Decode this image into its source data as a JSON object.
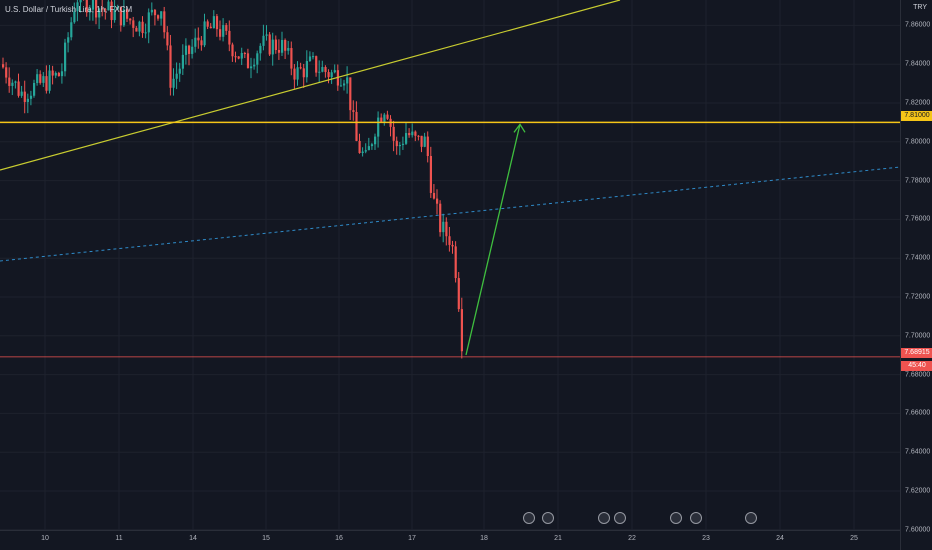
{
  "header": {
    "symbol_label": "U.S. Dollar / Turkish Lira, 1h, FXCM"
  },
  "price_axis": {
    "currency": "TRY",
    "ticks": [
      "7.86000",
      "7.84000",
      "7.82000",
      "7.80000",
      "7.78000",
      "7.76000",
      "7.74000",
      "7.72000",
      "7.70000",
      "7.68000",
      "7.66000",
      "7.64000",
      "7.62000",
      "7.60000"
    ],
    "tick_values": [
      7.86,
      7.84,
      7.82,
      7.8,
      7.78,
      7.76,
      7.74,
      7.72,
      7.7,
      7.68,
      7.66,
      7.64,
      7.62,
      7.6
    ],
    "level_label": "7.81000",
    "level_value": 7.81,
    "last_price": "7.68915",
    "last_price_value": 7.68915,
    "countdown": "45:40"
  },
  "time_axis": {
    "labels": [
      "10",
      "11",
      "14",
      "15",
      "16",
      "17",
      "18",
      "21",
      "22",
      "23",
      "24",
      "25"
    ]
  },
  "colors": {
    "background": "#131722",
    "bull": "#26a69a",
    "bear": "#ef5350",
    "horizontal_level": "#f5c518",
    "trendline": "#c8cc30",
    "channel_line": "#2f8bc9",
    "projection_arrow": "#3fbf3f"
  },
  "drawings": {
    "horizontal_level_price": 7.81,
    "projection_target_price": 7.809
  },
  "event_icons": [
    "calendar-event-flag",
    "calendar-event-flag",
    "calendar-event-flag",
    "calendar-event-flag",
    "calendar-event-flag",
    "calendar-event-flag",
    "calendar-event-flag"
  ]
}
